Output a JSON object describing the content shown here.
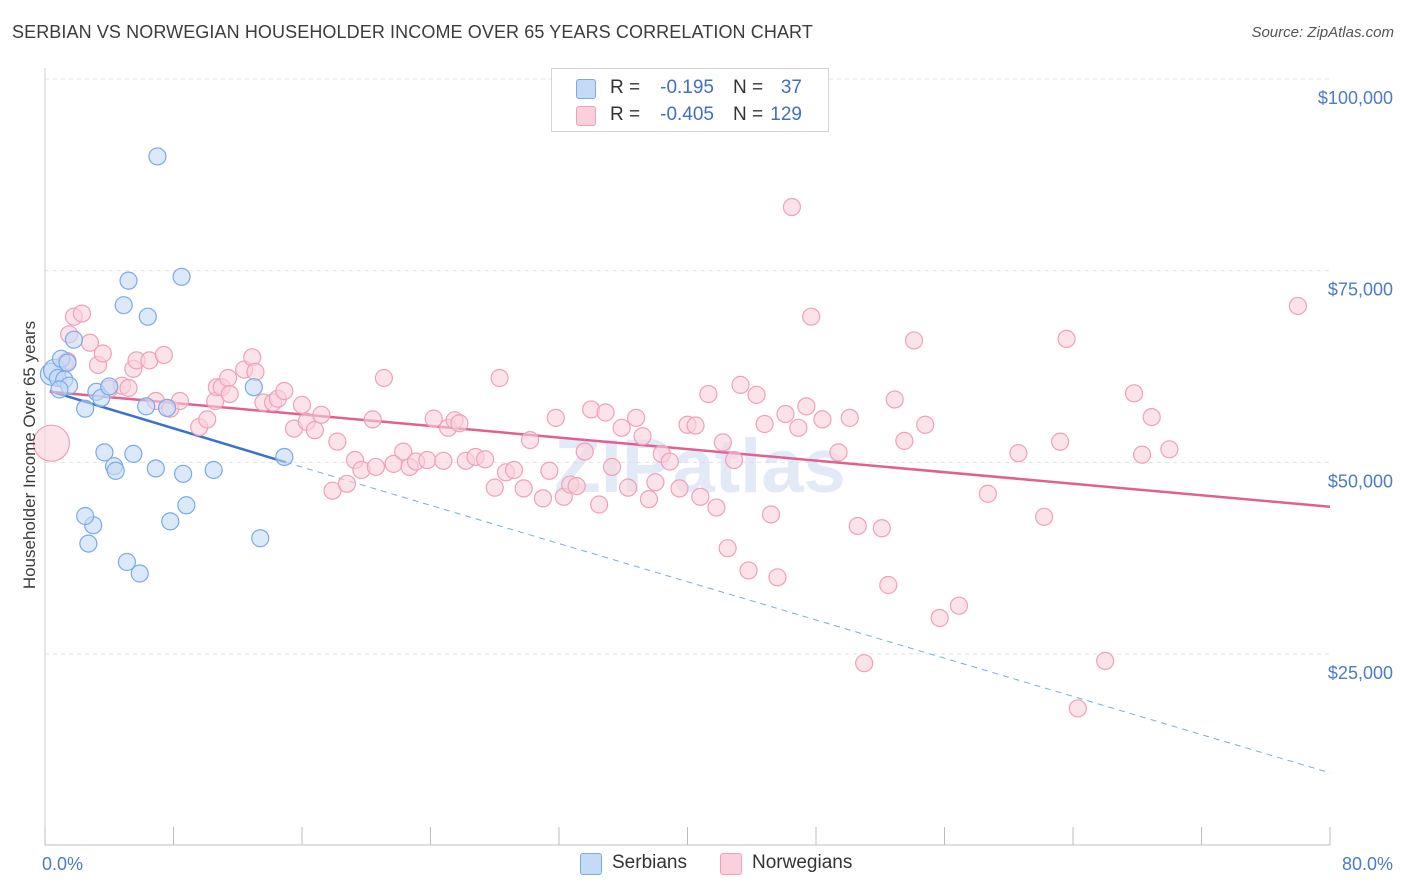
{
  "title": "SERBIAN VS NORWEGIAN HOUSEHOLDER INCOME OVER 65 YEARS CORRELATION CHART",
  "source": "Source: ZipAtlas.com",
  "watermark": "ZIPatlas",
  "legend": {
    "rows": [
      {
        "r_label": "R =",
        "r_value": "-0.195",
        "n_label": "N =",
        "n_value": "37",
        "color": "#7aaae8"
      },
      {
        "r_label": "R =",
        "r_value": "-0.405",
        "n_label": "N =",
        "n_value": "129",
        "color": "#f0a0b8"
      }
    ]
  },
  "bottom_legend": [
    {
      "label": "Serbians",
      "color": "#7aaae8"
    },
    {
      "label": "Norwegians",
      "color": "#f0a0b8"
    }
  ],
  "chart_data": {
    "type": "scatter",
    "xlabel": "",
    "ylabel": "Householder Income Over 65 years",
    "xlim": [
      0,
      80
    ],
    "ylim": [
      0,
      105000
    ],
    "x_tick_labels": [
      "0.0%",
      "80.0%"
    ],
    "y_tick_labels": [
      "$25,000",
      "$50,000",
      "$75,000",
      "$100,000"
    ],
    "y_ticks": [
      25000,
      50000,
      75000,
      100000
    ],
    "grid": true,
    "series": [
      {
        "name": "Serbians",
        "color": "#7aaae8",
        "line_color": "#3a72c8",
        "trend": {
          "x0": 0.3,
          "y0": 59300,
          "x1": 15.0,
          "y1": 50000,
          "dashed_to_x": 80,
          "dashed_to_y": 9500
        },
        "points": [
          [
            0.4,
            61500
          ],
          [
            0.6,
            62000
          ],
          [
            0.8,
            61000
          ],
          [
            1.0,
            63500
          ],
          [
            1.2,
            60800
          ],
          [
            1.4,
            63000
          ],
          [
            1.5,
            60000
          ],
          [
            1.8,
            66000
          ],
          [
            2.5,
            57000
          ],
          [
            2.7,
            39400
          ],
          [
            3.0,
            41800
          ],
          [
            3.2,
            59200
          ],
          [
            3.5,
            58400
          ],
          [
            3.7,
            51300
          ],
          [
            4.0,
            59900
          ],
          [
            4.3,
            49500
          ],
          [
            4.4,
            48900
          ],
          [
            4.9,
            70500
          ],
          [
            5.1,
            37000
          ],
          [
            5.2,
            73700
          ],
          [
            5.5,
            51100
          ],
          [
            5.9,
            35500
          ],
          [
            6.3,
            57300
          ],
          [
            6.4,
            69000
          ],
          [
            6.9,
            49200
          ],
          [
            7.0,
            89900
          ],
          [
            7.6,
            57100
          ],
          [
            7.8,
            42300
          ],
          [
            8.5,
            74200
          ],
          [
            8.6,
            48500
          ],
          [
            8.8,
            44400
          ],
          [
            10.5,
            49000
          ],
          [
            13.0,
            59800
          ],
          [
            13.4,
            40100
          ],
          [
            14.9,
            50700
          ],
          [
            2.5,
            43000
          ],
          [
            0.9,
            59500
          ]
        ]
      },
      {
        "name": "Norwegians",
        "color": "#f0a0b8",
        "line_color": "#e06090",
        "trend": {
          "x0": 0.3,
          "y0": 59200,
          "x1": 80,
          "y1": 44200
        },
        "points": [
          [
            0.4,
            52500
          ],
          [
            1.2,
            62800
          ],
          [
            1.4,
            63200
          ],
          [
            1.5,
            66700
          ],
          [
            1.8,
            69000
          ],
          [
            2.3,
            69400
          ],
          [
            2.8,
            65600
          ],
          [
            3.3,
            62700
          ],
          [
            3.6,
            64200
          ],
          [
            4.0,
            59600
          ],
          [
            4.8,
            60000
          ],
          [
            5.2,
            59700
          ],
          [
            5.5,
            62200
          ],
          [
            5.7,
            63300
          ],
          [
            6.5,
            63300
          ],
          [
            6.9,
            58000
          ],
          [
            7.4,
            64000
          ],
          [
            7.8,
            57000
          ],
          [
            8.4,
            58000
          ],
          [
            9.6,
            54600
          ],
          [
            10.1,
            55600
          ],
          [
            10.6,
            58000
          ],
          [
            10.7,
            59800
          ],
          [
            11.0,
            59800
          ],
          [
            11.4,
            61000
          ],
          [
            11.5,
            58900
          ],
          [
            12.4,
            62100
          ],
          [
            12.9,
            63700
          ],
          [
            13.1,
            61800
          ],
          [
            13.6,
            57800
          ],
          [
            14.2,
            57800
          ],
          [
            14.5,
            58300
          ],
          [
            14.9,
            59300
          ],
          [
            15.5,
            54400
          ],
          [
            16.0,
            57500
          ],
          [
            16.3,
            55300
          ],
          [
            16.8,
            54200
          ],
          [
            17.2,
            56200
          ],
          [
            17.9,
            46300
          ],
          [
            18.2,
            52700
          ],
          [
            18.8,
            47200
          ],
          [
            19.3,
            50300
          ],
          [
            19.7,
            49000
          ],
          [
            20.4,
            55600
          ],
          [
            20.6,
            49400
          ],
          [
            21.1,
            61000
          ],
          [
            21.7,
            49800
          ],
          [
            22.3,
            51400
          ],
          [
            22.7,
            49400
          ],
          [
            23.1,
            50100
          ],
          [
            23.8,
            50300
          ],
          [
            24.2,
            55700
          ],
          [
            24.8,
            50200
          ],
          [
            25.1,
            54500
          ],
          [
            25.5,
            55500
          ],
          [
            25.8,
            55100
          ],
          [
            26.2,
            50200
          ],
          [
            26.8,
            50700
          ],
          [
            27.4,
            50400
          ],
          [
            28.0,
            46700
          ],
          [
            28.3,
            61000
          ],
          [
            28.7,
            48700
          ],
          [
            29.2,
            49000
          ],
          [
            29.8,
            46600
          ],
          [
            30.2,
            52900
          ],
          [
            31.0,
            45300
          ],
          [
            31.4,
            48900
          ],
          [
            31.8,
            55800
          ],
          [
            32.3,
            45500
          ],
          [
            32.7,
            47100
          ],
          [
            33.1,
            46900
          ],
          [
            33.6,
            51400
          ],
          [
            34.0,
            56900
          ],
          [
            34.5,
            44500
          ],
          [
            34.9,
            56500
          ],
          [
            35.3,
            49400
          ],
          [
            35.9,
            54500
          ],
          [
            36.3,
            46700
          ],
          [
            36.8,
            55800
          ],
          [
            37.2,
            53400
          ],
          [
            37.6,
            45200
          ],
          [
            38.0,
            47400
          ],
          [
            38.4,
            51100
          ],
          [
            38.9,
            50100
          ],
          [
            39.5,
            46600
          ],
          [
            40.0,
            54900
          ],
          [
            40.5,
            54800
          ],
          [
            40.8,
            45500
          ],
          [
            41.3,
            58900
          ],
          [
            41.8,
            44100
          ],
          [
            42.2,
            52600
          ],
          [
            42.5,
            38800
          ],
          [
            42.9,
            50300
          ],
          [
            43.3,
            60100
          ],
          [
            43.8,
            35900
          ],
          [
            44.3,
            58800
          ],
          [
            44.8,
            55000
          ],
          [
            45.2,
            43200
          ],
          [
            45.6,
            35000
          ],
          [
            46.1,
            56300
          ],
          [
            46.5,
            83300
          ],
          [
            46.9,
            54500
          ],
          [
            47.4,
            57300
          ],
          [
            47.7,
            69000
          ],
          [
            48.4,
            55600
          ],
          [
            49.4,
            51300
          ],
          [
            50.1,
            55800
          ],
          [
            50.6,
            41700
          ],
          [
            51.0,
            23800
          ],
          [
            52.1,
            41400
          ],
          [
            52.5,
            34000
          ],
          [
            52.9,
            58200
          ],
          [
            53.5,
            52800
          ],
          [
            54.1,
            65900
          ],
          [
            54.8,
            54900
          ],
          [
            55.7,
            29700
          ],
          [
            56.9,
            31300
          ],
          [
            58.7,
            45900
          ],
          [
            60.6,
            51200
          ],
          [
            62.2,
            42900
          ],
          [
            63.2,
            52700
          ],
          [
            63.6,
            66100
          ],
          [
            64.3,
            17900
          ],
          [
            66.0,
            24100
          ],
          [
            67.8,
            59000
          ],
          [
            68.3,
            51000
          ],
          [
            68.9,
            55900
          ],
          [
            70.0,
            51700
          ],
          [
            78.0,
            70400
          ]
        ]
      }
    ]
  }
}
